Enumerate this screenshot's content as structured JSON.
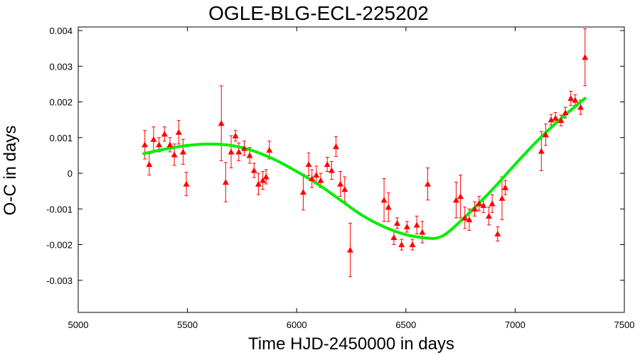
{
  "chart_data": {
    "type": "scatter",
    "title": "OGLE-BLG-ECL-225202",
    "xlabel": "Time HJD-2450000 in days",
    "ylabel": "O-C in days",
    "xlim": [
      5000,
      7500
    ],
    "ylim": [
      -0.0039,
      0.0041
    ],
    "xticks": [
      5000,
      5500,
      6000,
      6500,
      7000,
      7500
    ],
    "xtick_labels": [
      "5000",
      "5500",
      "6000",
      "6500",
      "7000",
      "7500"
    ],
    "yticks": [
      0.004,
      0.003,
      0.002,
      0.001,
      0,
      -0.001,
      -0.002,
      -0.003
    ],
    "ytick_labels": [
      "0.004",
      "0.003",
      "0.002",
      "0.001",
      "0",
      "-0.001",
      "-0.002",
      "-0.003"
    ],
    "grid": false,
    "colors": {
      "points": "#ff0000",
      "fit": "#00ee00",
      "axes": "#000000"
    },
    "series": [
      {
        "kind": "points-with-errorbars",
        "marker": "triangle",
        "points": [
          {
            "x": 5305,
            "y": 0.0008,
            "err": 0.0004
          },
          {
            "x": 5325,
            "y": 0.00025,
            "err": 0.0003
          },
          {
            "x": 5345,
            "y": 0.00095,
            "err": 0.00035
          },
          {
            "x": 5370,
            "y": 0.0008,
            "err": 0.0002
          },
          {
            "x": 5395,
            "y": 0.0011,
            "err": 0.0002
          },
          {
            "x": 5420,
            "y": 0.0008,
            "err": 0.0002
          },
          {
            "x": 5440,
            "y": 0.00052,
            "err": 0.0003
          },
          {
            "x": 5460,
            "y": 0.00115,
            "err": 0.00033
          },
          {
            "x": 5480,
            "y": 0.0006,
            "err": 0.00035
          },
          {
            "x": 5495,
            "y": -0.0003,
            "err": 0.00033
          },
          {
            "x": 5655,
            "y": 0.0014,
            "err": 0.00105
          },
          {
            "x": 5675,
            "y": -0.00025,
            "err": 0.00055
          },
          {
            "x": 5700,
            "y": 0.0006,
            "err": 0.00045
          },
          {
            "x": 5720,
            "y": 0.00105,
            "err": 0.00015
          },
          {
            "x": 5735,
            "y": 0.0006,
            "err": 0.00025
          },
          {
            "x": 5760,
            "y": 0.0007,
            "err": 0.0002
          },
          {
            "x": 5785,
            "y": 0.0005,
            "err": 0.00022
          },
          {
            "x": 5805,
            "y": 8e-05,
            "err": 0.0002
          },
          {
            "x": 5825,
            "y": -0.0003,
            "err": 0.0003
          },
          {
            "x": 5845,
            "y": -0.0002,
            "err": 0.00025
          },
          {
            "x": 5860,
            "y": -0.0001,
            "err": 0.0002
          },
          {
            "x": 5875,
            "y": 0.00065,
            "err": 0.00025
          },
          {
            "x": 6030,
            "y": -0.00053,
            "err": 0.0005
          },
          {
            "x": 6055,
            "y": 0.00025,
            "err": 0.00032
          },
          {
            "x": 6070,
            "y": -0.00015,
            "err": 0.00025
          },
          {
            "x": 6090,
            "y": -5e-05,
            "err": 0.00025
          },
          {
            "x": 6110,
            "y": -0.0002,
            "err": 0.0002
          },
          {
            "x": 6140,
            "y": 0.00025,
            "err": 0.0002
          },
          {
            "x": 6160,
            "y": 8e-05,
            "err": 0.00025
          },
          {
            "x": 6180,
            "y": 0.00075,
            "err": 0.00028
          },
          {
            "x": 6200,
            "y": -0.0003,
            "err": 0.00035
          },
          {
            "x": 6220,
            "y": -0.00045,
            "err": 0.00035
          },
          {
            "x": 6245,
            "y": -0.00215,
            "err": 0.00075
          },
          {
            "x": 6400,
            "y": -0.00075,
            "err": 0.0006
          },
          {
            "x": 6420,
            "y": -0.00095,
            "err": 0.0004
          },
          {
            "x": 6445,
            "y": -0.0018,
            "err": 0.0002
          },
          {
            "x": 6460,
            "y": -0.0014,
            "err": 0.00015
          },
          {
            "x": 6480,
            "y": -0.002,
            "err": 0.00015
          },
          {
            "x": 6505,
            "y": -0.0015,
            "err": 0.00015
          },
          {
            "x": 6530,
            "y": -0.002,
            "err": 0.00015
          },
          {
            "x": 6550,
            "y": -0.00145,
            "err": 0.00025
          },
          {
            "x": 6575,
            "y": -0.00165,
            "err": 0.0003
          },
          {
            "x": 6600,
            "y": -0.0003,
            "err": 0.00045
          },
          {
            "x": 6730,
            "y": -0.00075,
            "err": 0.0005
          },
          {
            "x": 6750,
            "y": -0.00065,
            "err": 0.0006
          },
          {
            "x": 6770,
            "y": -0.00125,
            "err": 0.0003
          },
          {
            "x": 6790,
            "y": -0.0013,
            "err": 0.0003
          },
          {
            "x": 6815,
            "y": -0.001,
            "err": 0.0002
          },
          {
            "x": 6835,
            "y": -0.00085,
            "err": 0.0002
          },
          {
            "x": 6855,
            "y": -0.0009,
            "err": 0.0002
          },
          {
            "x": 6880,
            "y": -0.0012,
            "err": 0.00025
          },
          {
            "x": 6895,
            "y": -0.00085,
            "err": 0.00025
          },
          {
            "x": 6920,
            "y": -0.0017,
            "err": 0.0002
          },
          {
            "x": 6940,
            "y": -0.0007,
            "err": 0.0006
          },
          {
            "x": 6955,
            "y": -0.0004,
            "err": 0.0002
          },
          {
            "x": 7120,
            "y": 0.00062,
            "err": 0.00055
          },
          {
            "x": 7140,
            "y": 0.00108,
            "err": 0.0003
          },
          {
            "x": 7165,
            "y": 0.0015,
            "err": 0.00015
          },
          {
            "x": 7185,
            "y": 0.00155,
            "err": 0.00015
          },
          {
            "x": 7210,
            "y": 0.00148,
            "err": 0.00015
          },
          {
            "x": 7230,
            "y": 0.0017,
            "err": 0.00015
          },
          {
            "x": 7255,
            "y": 0.0021,
            "err": 0.0002
          },
          {
            "x": 7275,
            "y": 0.00205,
            "err": 0.00015
          },
          {
            "x": 7300,
            "y": 0.00185,
            "err": 0.0002
          },
          {
            "x": 7320,
            "y": 0.00325,
            "err": 0.0008
          }
        ]
      },
      {
        "kind": "fit-curve",
        "x": [
          5300,
          5400,
          5500,
          5600,
          5700,
          5800,
          5900,
          6000,
          6100,
          6200,
          6300,
          6400,
          6500,
          6600,
          6650,
          6700,
          6800,
          6900,
          7000,
          7100,
          7200,
          7300,
          7320
        ],
        "y": [
          0.00055,
          0.00068,
          0.00078,
          0.00082,
          0.00078,
          0.00063,
          0.00038,
          5e-05,
          -0.00032,
          -0.00075,
          -0.00118,
          -0.0015,
          -0.00172,
          -0.00182,
          -0.0018,
          -0.00162,
          -0.00105,
          -0.00043,
          0.00025,
          0.0009,
          0.00148,
          0.002,
          0.0021
        ]
      }
    ]
  }
}
